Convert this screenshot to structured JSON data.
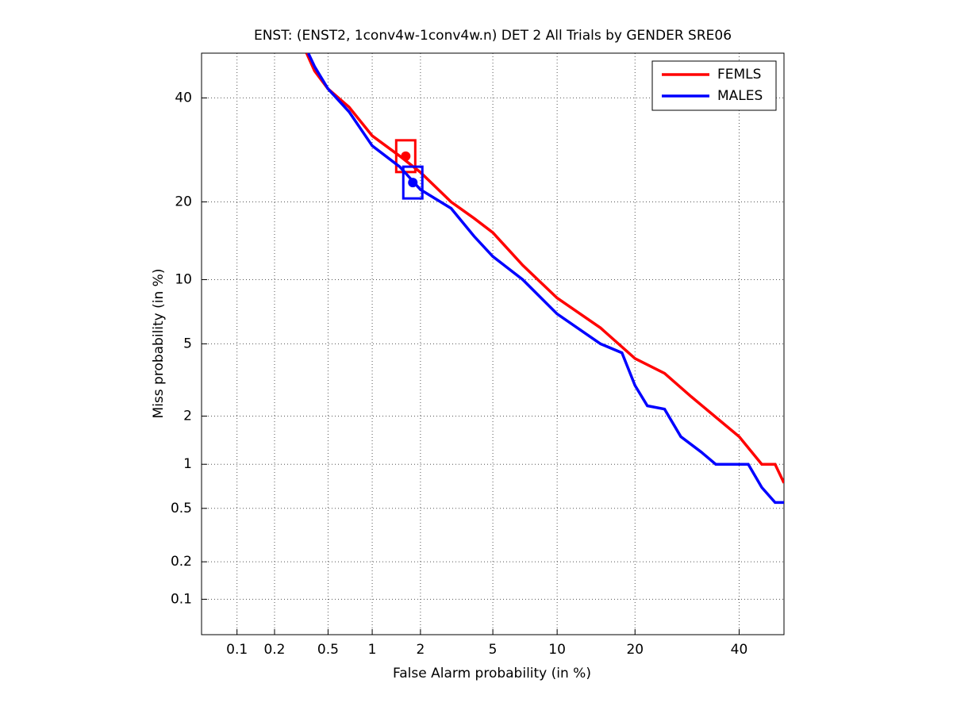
{
  "chart_data": {
    "type": "line",
    "scale": "probit",
    "title": "ENST: (ENST2, 1conv4w-1conv4w.n) DET 2 All Trials by GENDER SRE06",
    "xlabel": "False Alarm probability (in %)",
    "ylabel": "Miss probability (in %)",
    "xlim": [
      0.05,
      50
    ],
    "ylim": [
      0.05,
      50
    ],
    "xticks": [
      0.1,
      0.2,
      0.5,
      1,
      2,
      5,
      10,
      20,
      40
    ],
    "yticks": [
      0.1,
      0.2,
      0.5,
      1,
      2,
      5,
      10,
      20,
      40
    ],
    "grid": true,
    "legend": "top-right",
    "series": [
      {
        "name": "FEMLS",
        "color": "#ff0000",
        "x": [
          0.35,
          0.4,
          0.5,
          0.7,
          1,
          1.5,
          2,
          3,
          4,
          5,
          7,
          10,
          15,
          20,
          25,
          30,
          40,
          45,
          48,
          50
        ],
        "values": [
          50,
          46,
          42,
          38,
          32,
          28,
          25,
          20,
          17.5,
          15.5,
          11.5,
          8.3,
          6,
          4.2,
          3.5,
          2.6,
          1.5,
          1,
          1,
          0.75
        ],
        "marker_x": 1.63,
        "marker_y": 28
      },
      {
        "name": "MALES",
        "color": "#0000ff",
        "x": [
          0.36,
          0.4,
          0.5,
          0.7,
          1,
          1.5,
          2,
          3,
          4,
          5,
          7,
          10,
          15,
          18,
          20,
          22,
          25,
          28,
          32,
          35,
          42,
          45,
          48,
          50
        ],
        "values": [
          50,
          47,
          42,
          37,
          30,
          26,
          22,
          19,
          15,
          12.5,
          10,
          7,
          5,
          4.5,
          3,
          2.3,
          2.2,
          1.5,
          1.2,
          1,
          1,
          0.7,
          0.55,
          0.55
        ],
        "marker_x": 1.8,
        "marker_y": 23.2
      }
    ]
  }
}
